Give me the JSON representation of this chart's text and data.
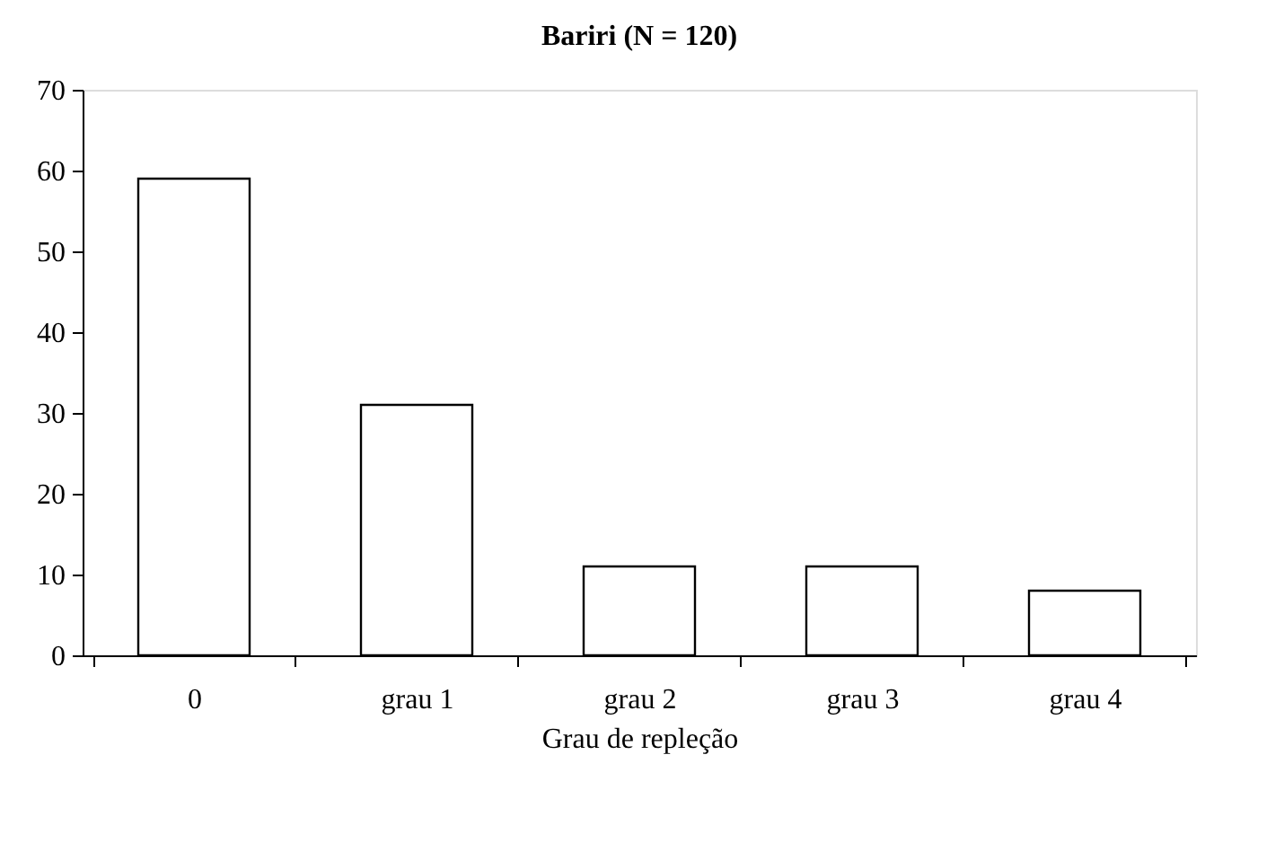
{
  "chart_data": {
    "type": "bar",
    "title": "Bariri (N = 120)",
    "xlabel": "Grau de repleção",
    "categories": [
      "0",
      "grau 1",
      "grau 2",
      "grau 3",
      "grau 4"
    ],
    "values": [
      59,
      31,
      11,
      11,
      8
    ],
    "color": "#ffffff",
    "ylim": [
      0,
      70
    ],
    "yticks": [
      0,
      10,
      20,
      30,
      40,
      50,
      60,
      70
    ],
    "grid": false
  }
}
